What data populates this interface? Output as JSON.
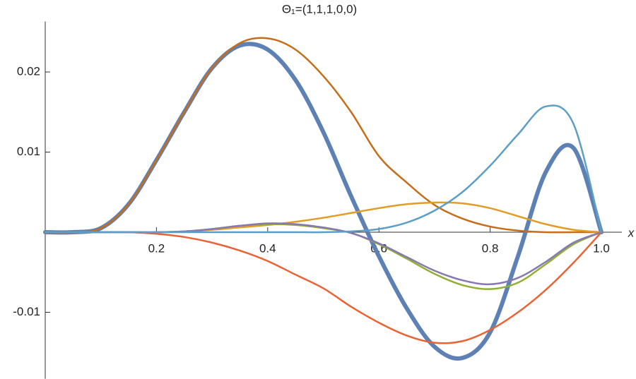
{
  "chart_data": {
    "type": "line",
    "title": "Θ₁=(1,1,1,0,0)",
    "x_label": "x",
    "x": [
      0,
      0.05,
      0.1,
      0.15,
      0.2,
      0.25,
      0.3,
      0.35,
      0.4,
      0.45,
      0.5,
      0.55,
      0.6,
      0.65,
      0.7,
      0.75,
      0.8,
      0.85,
      0.9,
      0.95,
      1
    ],
    "series": [
      {
        "color": "#5e81b5",
        "width": 6,
        "values": [
          0,
          0,
          0.0005,
          0.0035,
          0.009,
          0.015,
          0.0205,
          0.0233,
          0.0228,
          0.019,
          0.0125,
          0.0045,
          -0.003,
          -0.0095,
          -0.0143,
          -0.0157,
          -0.0125,
          -0.003,
          0.0075,
          0.0105,
          0
        ]
      },
      {
        "color": "#c56e1a",
        "width": 2.5,
        "values": [
          0,
          0,
          0.0005,
          0.0035,
          0.009,
          0.015,
          0.0205,
          0.0236,
          0.0242,
          0.0228,
          0.0195,
          0.015,
          0.0095,
          0.0062,
          0.0034,
          0.0017,
          0.0007,
          0.0002,
          0,
          0,
          0
        ]
      },
      {
        "color": "#e19c24",
        "width": 2.5,
        "values": [
          0,
          0,
          0,
          0,
          0,
          0.0001,
          0.0003,
          0.0006,
          0.0009,
          0.0013,
          0.0018,
          0.0024,
          0.003,
          0.0035,
          0.0037,
          0.0036,
          0.003,
          0.002,
          0.001,
          0.0003,
          0
        ]
      },
      {
        "color": "#8fb032",
        "width": 2.5,
        "values": [
          0,
          0,
          0,
          0,
          0,
          0.0001,
          0.0004,
          0.0008,
          0.001,
          0.0009,
          0.0005,
          -0.0001,
          -0.0015,
          -0.0033,
          -0.0052,
          -0.0066,
          -0.0071,
          -0.0063,
          -0.004,
          -0.0015,
          0
        ]
      },
      {
        "color": "#eb6235",
        "width": 2.5,
        "values": [
          0,
          0,
          0,
          0,
          -0.0002,
          -0.0006,
          -0.0013,
          -0.0023,
          -0.0036,
          -0.0053,
          -0.007,
          -0.0093,
          -0.0113,
          -0.0129,
          -0.0138,
          -0.0136,
          -0.0122,
          -0.01,
          -0.0072,
          -0.0038,
          0
        ]
      },
      {
        "color": "#8778b3",
        "width": 2.5,
        "values": [
          0,
          0,
          0,
          0,
          0,
          0.0001,
          0.0004,
          0.0008,
          0.0011,
          0.001,
          0.0006,
          -0.0001,
          -0.0014,
          -0.0031,
          -0.0048,
          -0.006,
          -0.0065,
          -0.0057,
          -0.0037,
          -0.0013,
          0
        ]
      },
      {
        "color": "#5d9ec7",
        "width": 2.5,
        "values": [
          0,
          0,
          0,
          0,
          0,
          0,
          0,
          0,
          0,
          0,
          0,
          0.0001,
          0.0004,
          0.0012,
          0.0027,
          0.005,
          0.0083,
          0.0122,
          0.0157,
          0.0135,
          0
        ]
      }
    ],
    "xlim": [
      0,
      1
    ],
    "ylim": [
      -0.0183,
      0.0263
    ],
    "xticks": [
      0.2,
      0.4,
      0.6,
      0.8,
      {
        "value": 1,
        "label": "1.0"
      }
    ],
    "yticks": [
      -0.01,
      0.01,
      0.02
    ]
  }
}
